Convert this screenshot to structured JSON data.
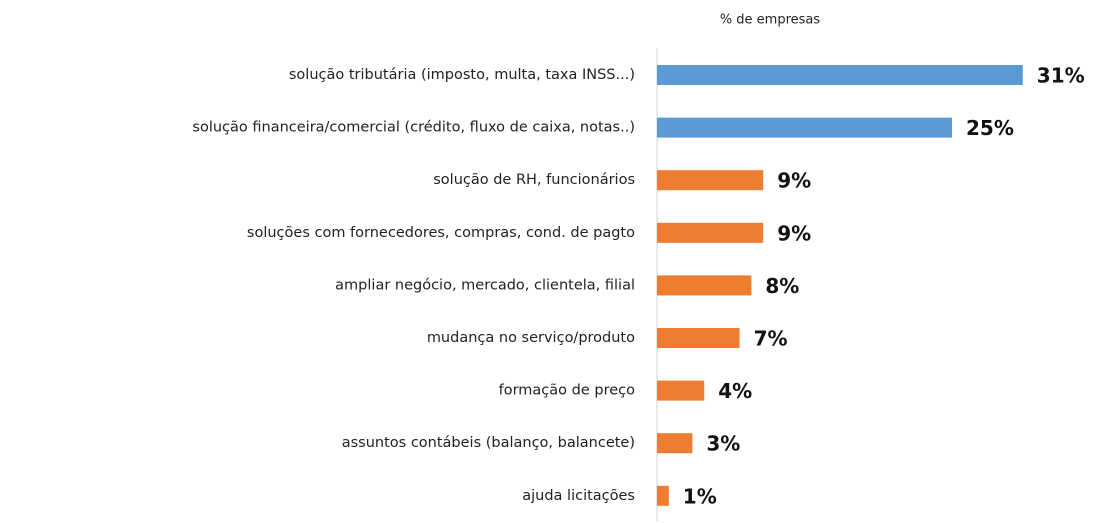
{
  "chart_data": {
    "type": "bar",
    "orientation": "horizontal",
    "title": "% de empresas",
    "categories": [
      "solução tributária (imposto, multa, taxa INSS...)",
      "solução financeira/comercial (crédito, fluxo de caixa, notas..)",
      "solução de RH, funcionários",
      "soluções com fornecedores, compras, cond. de pagto",
      "ampliar negócio, mercado, clientela, filial",
      "mudança no serviço/produto",
      "formação de preço",
      "assuntos contábeis (balanço, balancete)",
      "ajuda licitações"
    ],
    "values": [
      31,
      25,
      9,
      9,
      8,
      7,
      4,
      3,
      1
    ],
    "value_labels": [
      "31%",
      "25%",
      "9%",
      "9%",
      "8%",
      "7%",
      "4%",
      "3%",
      "1%"
    ],
    "colors": [
      "#5b9bd5",
      "#5b9bd5",
      "#ed7d31",
      "#ed7d31",
      "#ed7d31",
      "#ed7d31",
      "#ed7d31",
      "#ed7d31",
      "#ed7d31"
    ]
  }
}
